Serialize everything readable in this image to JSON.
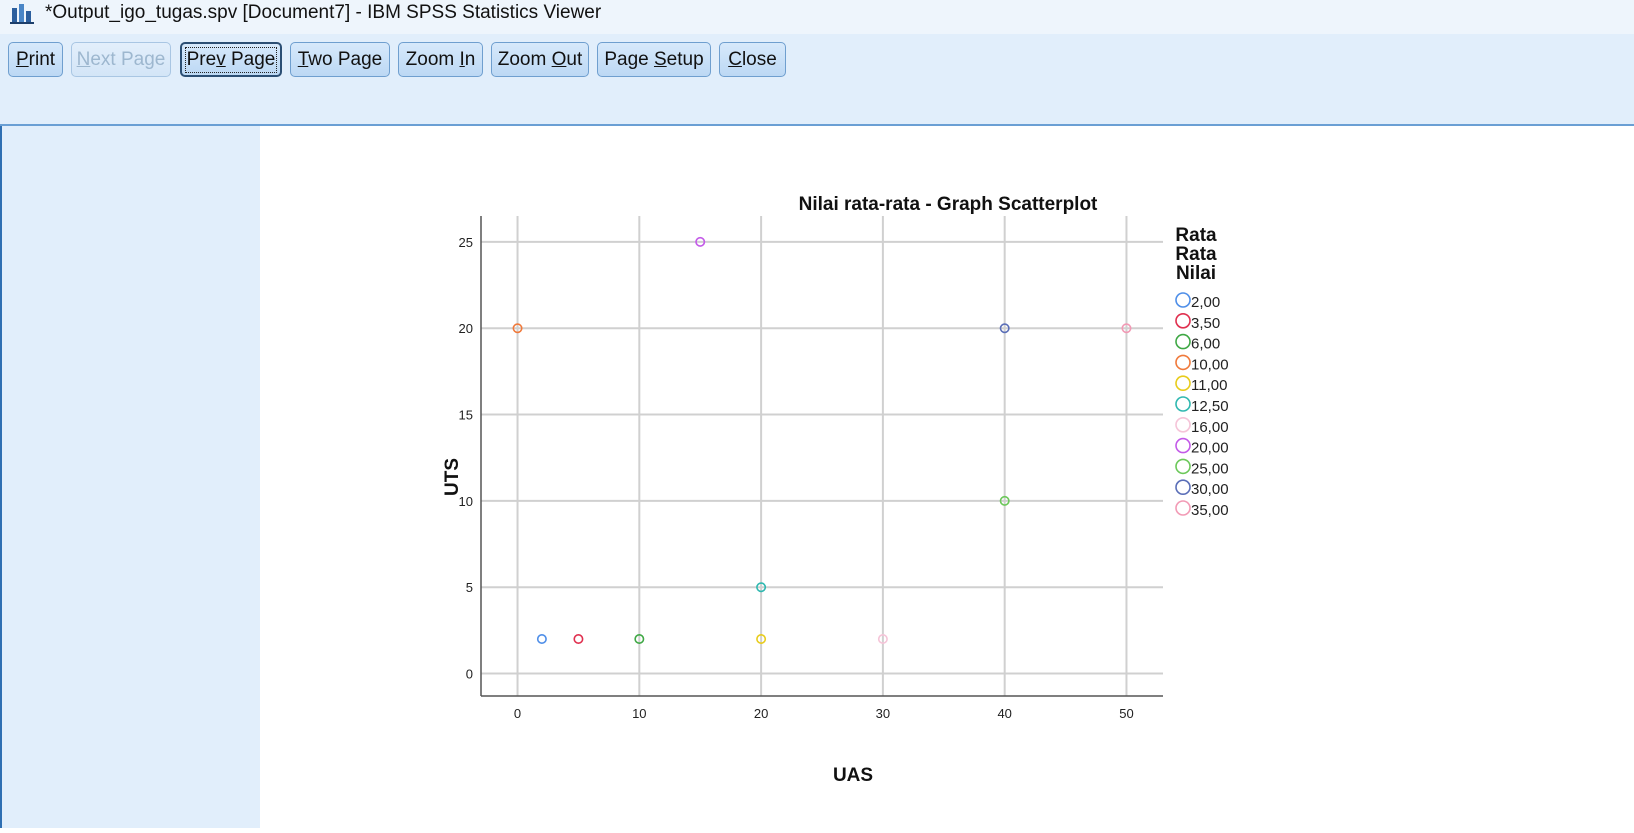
{
  "window": {
    "title": "*Output_igo_tugas.spv [Document7] - IBM SPSS Statistics Viewer"
  },
  "toolbar": {
    "buttons": [
      {
        "label": "Print",
        "mnemonic": "P",
        "disabled": false,
        "focused": false
      },
      {
        "label": "Next Page",
        "mnemonic": "N",
        "disabled": true,
        "focused": false
      },
      {
        "label": "Prev Page",
        "mnemonic": "v",
        "disabled": false,
        "focused": true
      },
      {
        "label": "Two Page",
        "mnemonic": "T",
        "disabled": false,
        "focused": false
      },
      {
        "label": "Zoom In",
        "mnemonic": "I",
        "disabled": false,
        "focused": false
      },
      {
        "label": "Zoom Out",
        "mnemonic": "O",
        "disabled": false,
        "focused": false
      },
      {
        "label": "Page Setup",
        "mnemonic": "S",
        "disabled": false,
        "focused": false
      },
      {
        "label": "Close",
        "mnemonic": "C",
        "disabled": false,
        "focused": false
      }
    ]
  },
  "chart_data": {
    "type": "scatter",
    "title": "Nilai rata-rata - Graph Scatterplot",
    "xlabel": "UAS",
    "ylabel": "UTS",
    "xlim": [
      -3,
      53
    ],
    "ylim": [
      -1.3,
      26.5
    ],
    "xticks": [
      0,
      10,
      20,
      30,
      40,
      50
    ],
    "yticks": [
      0,
      5,
      10,
      15,
      20,
      25
    ],
    "grid": true,
    "legend_position": "right",
    "legend_title": "Rata Rata Nilai",
    "series": [
      {
        "name": "2,00",
        "color": "#4e8ee8",
        "points": [
          [
            2,
            2
          ]
        ]
      },
      {
        "name": "3,50",
        "color": "#e0304f",
        "points": [
          [
            5,
            2
          ]
        ]
      },
      {
        "name": "6,00",
        "color": "#3fa845",
        "points": [
          [
            10,
            2
          ]
        ]
      },
      {
        "name": "10,00",
        "color": "#f07a3c",
        "points": [
          [
            0,
            20
          ]
        ]
      },
      {
        "name": "11,00",
        "color": "#e8cc1c",
        "points": [
          [
            20,
            2
          ]
        ]
      },
      {
        "name": "12,50",
        "color": "#2fb8b0",
        "points": [
          [
            20,
            5
          ]
        ]
      },
      {
        "name": "16,00",
        "color": "#f5c4d8",
        "points": [
          [
            30,
            2
          ]
        ]
      },
      {
        "name": "20,00",
        "color": "#c35ae8",
        "points": [
          [
            15,
            25
          ]
        ]
      },
      {
        "name": "25,00",
        "color": "#6cc85a",
        "points": [
          [
            40,
            10
          ]
        ]
      },
      {
        "name": "30,00",
        "color": "#5b6fb8",
        "points": [
          [
            40,
            20
          ]
        ]
      },
      {
        "name": "35,00",
        "color": "#f29ab5",
        "points": [
          [
            50,
            20
          ]
        ]
      }
    ]
  }
}
